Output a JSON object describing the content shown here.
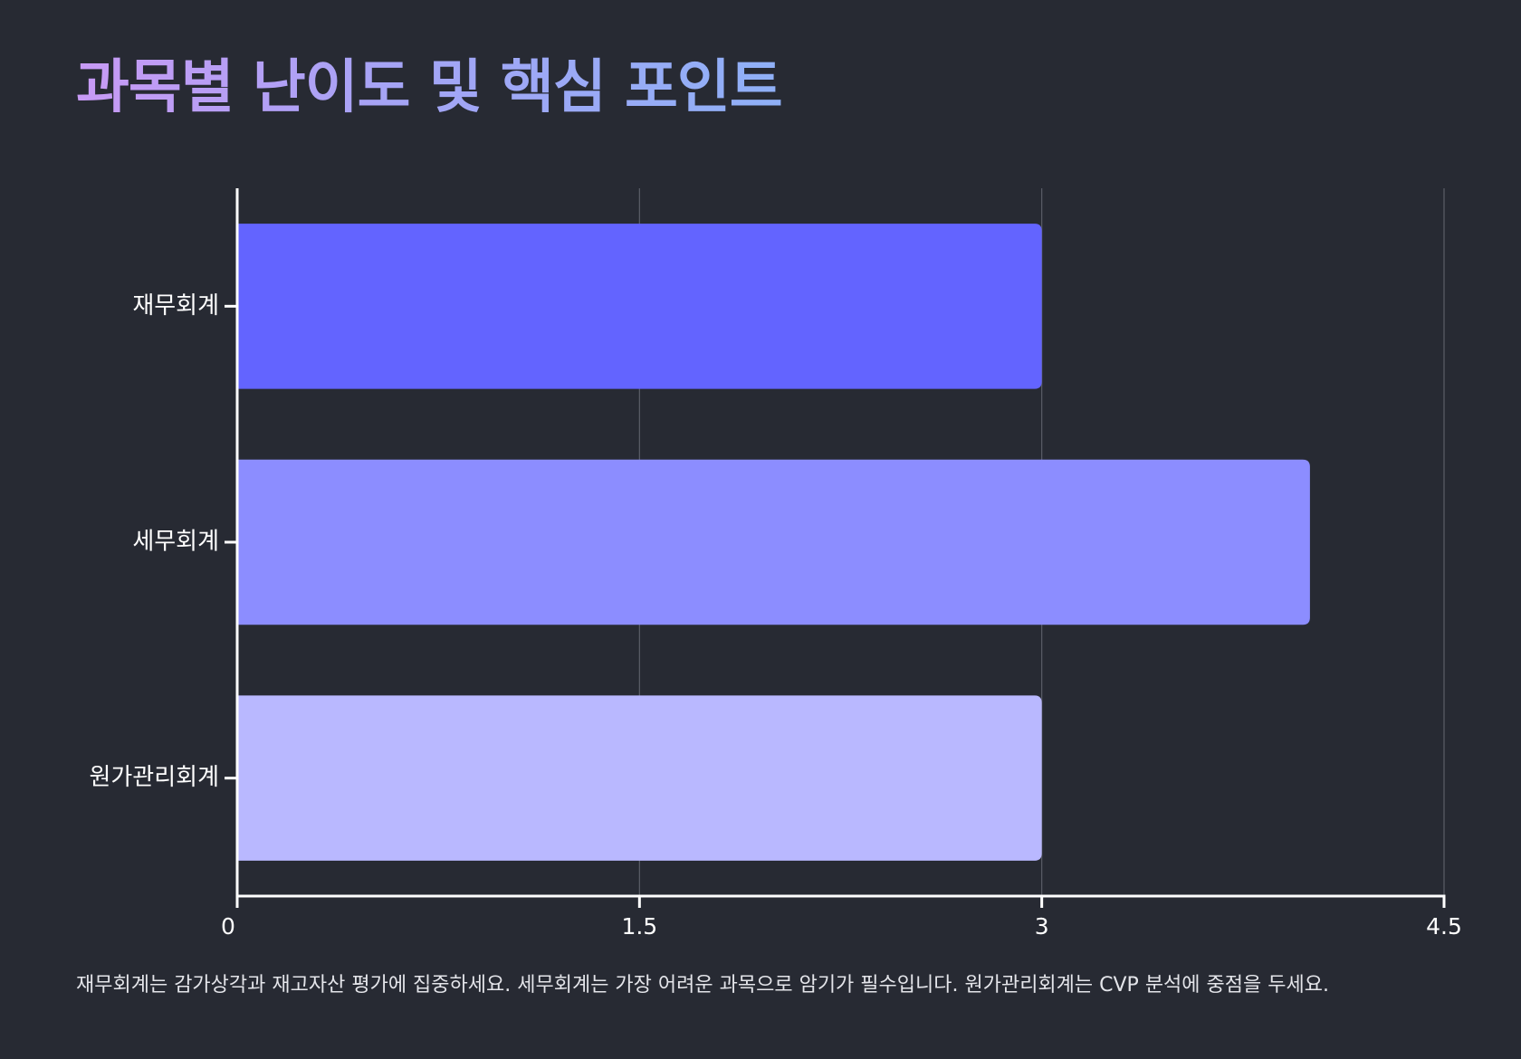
{
  "chart_data": {
    "type": "bar",
    "orientation": "horizontal",
    "title": "과목별 난이도 및 핵심 포인트",
    "categories": [
      "재무회계",
      "세무회계",
      "원가관리회계"
    ],
    "values": [
      3,
      4,
      3
    ],
    "bar_colors": [
      "#6364ff",
      "#8c8dff",
      "#b9b8ff"
    ],
    "xlim": [
      0,
      4.5
    ],
    "xticks": [
      0,
      1.5,
      3,
      4.5
    ],
    "xtick_labels": [
      "0",
      "1.5",
      "3",
      "4.5"
    ],
    "grid": "vertical",
    "caption": "재무회계는 감가상각과 재고자산 평가에 집중하세요. 세무회계는 가장 어려운 과목으로 암기가 필수입니다. 원가관리회계는 CVP 분석에 중점을 두세요."
  }
}
